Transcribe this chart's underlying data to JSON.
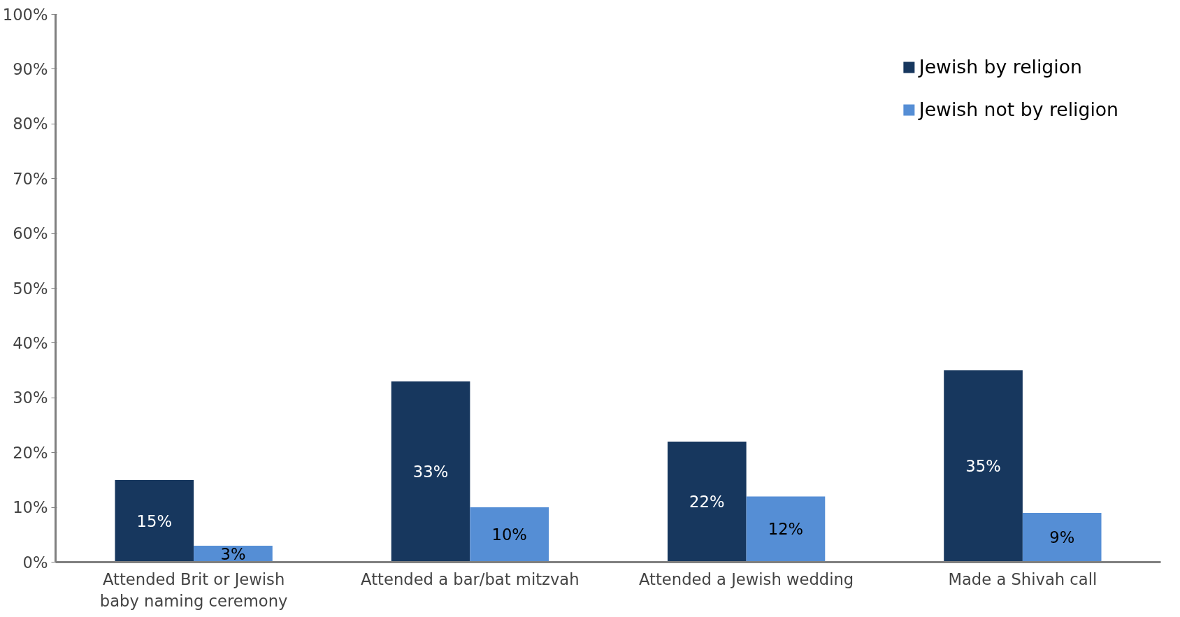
{
  "chart_data": {
    "type": "bar",
    "categories": [
      "Attended Brit or Jewish baby naming ceremony",
      "Attended a bar/bat mitzvah",
      "Attended a Jewish wedding",
      "Made a Shivah call"
    ],
    "series": [
      {
        "name": "Jewish by religion",
        "color": "#17375e",
        "values": [
          15,
          33,
          22,
          35
        ],
        "value_labels": [
          "15%",
          "33%",
          "22%",
          "35%"
        ]
      },
      {
        "name": "Jewish not by religion",
        "color": "#558ed5",
        "values": [
          3,
          10,
          12,
          9
        ],
        "value_labels": [
          "3%",
          "10%",
          "12%",
          "9%"
        ]
      }
    ],
    "ylim": [
      0,
      100
    ],
    "yticks": [
      {
        "value": 0,
        "label": "0%"
      },
      {
        "value": 10,
        "label": "10%"
      },
      {
        "value": 20,
        "label": "20%"
      },
      {
        "value": 30,
        "label": "30%"
      },
      {
        "value": 40,
        "label": "40%"
      },
      {
        "value": 50,
        "label": "50%"
      },
      {
        "value": 60,
        "label": "60%"
      },
      {
        "value": 70,
        "label": "70%"
      },
      {
        "value": 80,
        "label": "80%"
      },
      {
        "value": 90,
        "label": "90%"
      },
      {
        "value": 100,
        "label": "100%"
      }
    ],
    "grid": false,
    "legend": "top right"
  }
}
